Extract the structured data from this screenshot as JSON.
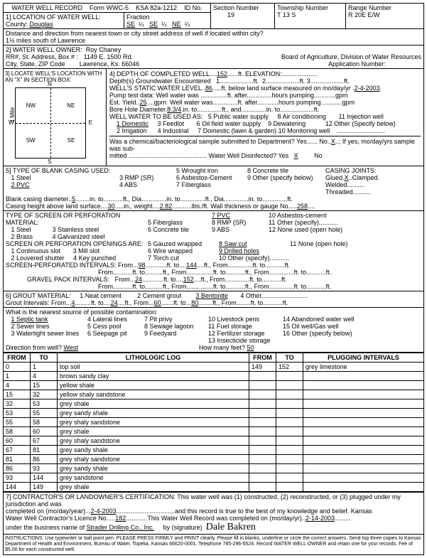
{
  "form": {
    "title": "WATER WELL RECORD",
    "form_no": "Form WWC-5",
    "ksa": "KSA 82a-1212",
    "id_label": "ID No."
  },
  "loc": {
    "sec_label": "1] LOCATION OF WATER WELL:",
    "county_label": "County:",
    "county": "Douglas",
    "fraction": "Fraction",
    "se1": "SE",
    "q1": "¼",
    "se2": "SE",
    "q2": "¼",
    "ne": "NE",
    "q3": "¼",
    "section_label": "Section Number",
    "section": "19",
    "twp_label": "Township Number",
    "twp": "T    13    S",
    "rng_label": "Range Number",
    "rng": "R    20E    E/W",
    "dist_label": "Distance and direction from nearest town or city street address of well if located within city?",
    "dist": "1½ miles south of Lawrence"
  },
  "owner": {
    "sec_label": "2] WATER WELL OWNER:",
    "name": "Roy Chaney",
    "addr_label": "RR#, St. Address, Box # :",
    "addr": "1149 E. 1500 Rd.",
    "city_label": "City, State, ZIP Code",
    "city": "Lawrence, Ks.  66046",
    "board": "Board of Agriculture, Division of Water Resources",
    "app_label": "Application Number:"
  },
  "sec3": {
    "label": "3] LOCATE WELL'S LOCATION WITH AN \"X\" IN SECTION BOX:",
    "n": "N",
    "nw": "NW",
    "ne": "NE",
    "w": "W",
    "e": "E",
    "sw": "SW",
    "se": "SE",
    "s": "S",
    "mile": "1 Mile"
  },
  "sec4": {
    "label": "4] DEPTH OF COMPLETED WELL",
    "depth": "152",
    "ft": "ft.",
    "elev_label": "ELEVATION:",
    "gw_label": "Depth(s) Groundwater Encountered",
    "gw1": "1.",
    "gw2": "2.",
    "gw3": "ft. 3.",
    "swl_label": "WELL'S STATIC WATER LEVEL",
    "swl": "86",
    "swl_after": "ft. below land surface measured on mo/day/yr",
    "swl_date": "2-4-2003",
    "pump_label": "Pump test data: Well water was",
    "pump_after": "ft. after",
    "pump_hrs": "hours pumping",
    "pump_gpm": "gpm",
    "est_label": "Est. Yield",
    "est": "25",
    "est_unit": "gpm",
    "est_after": "Well water was",
    "est_ft": "ft. after",
    "est_hrs": "hours pumping",
    "est_gpm": "gpm",
    "bore_label": "Bore Hole Diameter",
    "bore": "8.3/4",
    "bore_to": "in. to",
    "bore_ft": "ft., and",
    "bore_in2": "in. to",
    "bore_ft2": "ft.",
    "use_label": "WELL WATER TO BE USED AS:",
    "use1": "1 Domestic",
    "use2": "2 Irrigation",
    "use3": "3 Feedlot",
    "use4": "4 Industrial",
    "use5": "5 Public water supply",
    "use6": "6 Oil field water supply",
    "use7": "7 Domestic (lawn & garden)",
    "use8": "8 Air conditioning",
    "use9": "9 Dewatering",
    "use10": "10 Monitoring well",
    "use11": "11 Injection well",
    "use12": "12 Other (Specify below)",
    "chem_label": "Was a chemical/bacteriological sample submitted to Department? Yes",
    "chem_no": "No",
    "chem_x": "X",
    "chem_after": "; If yes, mo/day/yrs sample was sub-",
    "mitted": "mitted",
    "disinfect": "Water Well Disinfected?  Yes",
    "dis_x": "X",
    "dis_no": "No"
  },
  "sec5": {
    "label": "5] TYPE OF BLANK CASING USED:",
    "c1": "1 Steel",
    "c2": "2 PVC",
    "c3": "3 RMP (SR)",
    "c4": "4 ABS",
    "c5": "5 Wrought iron",
    "c6": "6 Asbestos-Cement",
    "c7": "7 Fiberglass",
    "c8": "8 Concrete tile",
    "c9": "9 Other (specify below)",
    "joints": "CASING JOINTS: Glued",
    "jx": "X",
    "jclamp": "Clamped",
    "welded": "Welded",
    "threaded": "Threaded",
    "bcd_label": "Blank casing diameter",
    "bcd": "5",
    "bcd_in": "in. to",
    "bcd_ft": "ft., Dia.",
    "bcd_in2": "in. to",
    "bcd_ft2": "ft., Dia.",
    "bcd_in3": "in. to",
    "bcd_ft3": "ft.",
    "cht_label": "Casing height above land surface",
    "cht": "30",
    "cht_in": "in., weight",
    "cht_wt": "2.82",
    "cht_lbs": "lbs./ft. Wall thickness or gauge No.",
    "cht_ga": "258",
    "screen_label": "TYPE OF SCREEN OR PERFORATION MATERIAL:",
    "s1": "1 Steel",
    "s2": "2 Brass",
    "s3": "3 Stainless steel",
    "s4": "4 Galvanized steel",
    "s5": "5 Fiberglass",
    "s6": "6 Concrete tile",
    "s7": "7 PVC",
    "s8": "8 RMP (SR)",
    "s9": "9 ABS",
    "s10": "10 Asbestos-cement",
    "s11": "11 Other (specify)",
    "s12": "12 None used (open hole)",
    "open_label": "SCREEN OR PERFORATION OPENINGS ARE:",
    "o1": "1 Continuous slot",
    "o2": "2 Louvered shutter",
    "o3": "3 Mill slot",
    "o4": "4 Key punched",
    "o5": "5 Gauzed wrapped",
    "o6": "6 Wire wrapped",
    "o7": "7 Torch cut",
    "o8": "8 Saw cut",
    "o9": "9 Drilled holes",
    "o10": "10 Other (specify)",
    "o11": "11 None (open hole)",
    "spi_label": "SCREEN-PERFORATED INTERVALS:  From",
    "spi_f1": "98",
    "spi_to": "ft. to",
    "spi_t1": "144",
    "spi_from": "ft., From",
    "spi_ft": "ft.",
    "gpi_label": "GRAVEL PACK INTERVALS:",
    "gpi_from": "From",
    "gpi_f1": "24",
    "gpi_t1": "152"
  },
  "sec6": {
    "label": "6] GROUT MATERIAL:",
    "g1": "1 Neat cement",
    "g2": "2 Cement grout",
    "g3": "3 Bentonite",
    "g4": "4 Other",
    "gi_label": "Grout Intervals:  From",
    "gi_f1": "4",
    "gi_to": "ft. to",
    "gi_t1": "24",
    "gi_from": "ft., From",
    "gi_f2": "60",
    "gi_t2": "80",
    "gi_ft": "ft.",
    "contam_label": "What is the nearest source of possible contamination:",
    "co1": "1 Septic tank",
    "co2": "2 Sewer lines",
    "co3": "3 Watertight sewer lines",
    "co4": "4 Lateral lines",
    "co5": "5 Cess pool",
    "co6": "6 Seepage pit",
    "co7": "7 Pit privy",
    "co8": "8 Sewage lagoon",
    "co9": "9 Feedyard",
    "co10": "10 Livestock pens",
    "co11": "11 Fuel storage",
    "co12": "12 Fertilizer storage",
    "co13": "13 Insecticide storage",
    "co14": "14 Abandoned water well",
    "co15": "15 Oil well/Gas well",
    "co16": "16 Other (specify below)",
    "dir_label": "Direction from well?",
    "dir": "West",
    "howmany": "How many feet?",
    "feet": "50"
  },
  "log": {
    "from": "FROM",
    "to": "TO",
    "lith": "LITHOLOGIC LOG",
    "plug": "PLUGGING INTERVALS",
    "rows": [
      {
        "f": "0",
        "t": "1",
        "d": "top soil"
      },
      {
        "f": "1",
        "t": "4",
        "d": "brown sandy clay"
      },
      {
        "f": "4",
        "t": "15",
        "d": "yellow shale"
      },
      {
        "f": "15",
        "t": "32",
        "d": "yellow shaly sandstone"
      },
      {
        "f": "32",
        "t": "53",
        "d": "grey shale"
      },
      {
        "f": "53",
        "t": "55",
        "d": "grey sandy shale"
      },
      {
        "f": "55",
        "t": "58",
        "d": "grey shaly sandstone"
      },
      {
        "f": "58",
        "t": "60",
        "d": "grey shale"
      },
      {
        "f": "60",
        "t": "67",
        "d": "grey shaly sandstone"
      },
      {
        "f": "67",
        "t": "81",
        "d": "grey sandy shale"
      },
      {
        "f": "81",
        "t": "86",
        "d": "grey shaly sandstone"
      },
      {
        "f": "86",
        "t": "93",
        "d": "grey sandy shale"
      },
      {
        "f": "93",
        "t": "144",
        "d": "grey sandstone"
      },
      {
        "f": "144",
        "t": "149",
        "d": "grey shale"
      }
    ],
    "plug_f": "149",
    "plug_t": "152",
    "plug_d": "grey limestone"
  },
  "sec7": {
    "label": "7] CONTRACTOR'S OR LANDOWNER'S CERTIFICATION: This water well was (1) constructed, (2) reconstructed, or (3) plugged under my jurisdiction and was",
    "l2a": "completed on (mo/day/year)",
    "date1": "2-4-2003",
    "l2b": "and this record is true to the best of my knowledge and belief. Kansas",
    "l3a": "Water Well Contractor's Licence No.",
    "lic": "182",
    "l3b": "This Water Well Record was completed on (mo/day/yr)",
    "date2": "2-14-2003",
    "l4a": "under the business name of",
    "biz": "Strader Drilling Co., Inc.",
    "l4b": "by (signature)",
    "sig": "Dale Bakren"
  },
  "instr": "INSTRUCTIONS: Use typewriter or ball point pen. PLEASE PRESS FIRMLY and PRINT clearly. Please fill in blanks, underline or circle the correct answers. Send top three copies to Kansas Department of Health and Environment, Bureau of Water, Topeka, Kansas 66620-0001. Telephone 785-296-5524. Record WATER WELL OWNER and retain one for your records. Fee of $5.00 for each constructed well."
}
